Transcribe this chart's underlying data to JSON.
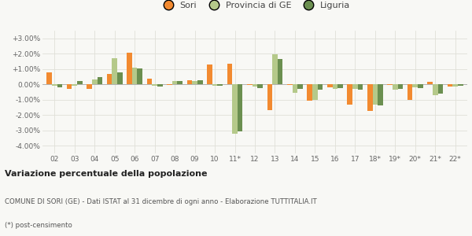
{
  "categories": [
    "02",
    "03",
    "04",
    "05",
    "06",
    "07",
    "08",
    "09",
    "10",
    "11*",
    "12",
    "13",
    "14",
    "15",
    "16",
    "17",
    "18*",
    "19*",
    "20*",
    "21*",
    "22*"
  ],
  "sori": [
    0.8,
    -0.3,
    -0.3,
    0.7,
    2.05,
    0.35,
    -0.05,
    0.25,
    1.3,
    1.35,
    -0.05,
    -1.7,
    -0.05,
    -1.05,
    -0.2,
    -1.3,
    -1.75,
    -0.05,
    -1.0,
    0.15,
    -0.15
  ],
  "provincia": [
    -0.1,
    -0.1,
    0.3,
    1.7,
    1.1,
    -0.1,
    0.2,
    0.2,
    -0.1,
    -3.2,
    -0.15,
    1.95,
    -0.55,
    -1.0,
    -0.3,
    -0.3,
    -1.3,
    -0.35,
    -0.2,
    -0.7,
    -0.15
  ],
  "liguria": [
    -0.2,
    0.2,
    0.45,
    0.8,
    1.05,
    -0.15,
    0.2,
    0.25,
    -0.1,
    -3.05,
    -0.25,
    1.65,
    -0.3,
    -0.35,
    -0.25,
    -0.35,
    -1.35,
    -0.3,
    -0.25,
    -0.6,
    -0.1
  ],
  "color_sori": "#f28a30",
  "color_provincia": "#b5c98a",
  "color_liguria": "#6b8f50",
  "ylim": [
    -4.5,
    3.5
  ],
  "yticks": [
    -4.0,
    -3.0,
    -2.0,
    -1.0,
    0.0,
    1.0,
    2.0,
    3.0
  ],
  "title": "Variazione percentuale della popolazione",
  "subtitle": "COMUNE DI SORI (GE) - Dati ISTAT al 31 dicembre di ogni anno - Elaborazione TUTTITALIA.IT",
  "footnote": "(*) post-censimento",
  "legend_labels": [
    "Sori",
    "Provincia di GE",
    "Liguria"
  ],
  "bg_color": "#f8f8f5",
  "grid_color": "#e0e0d8"
}
